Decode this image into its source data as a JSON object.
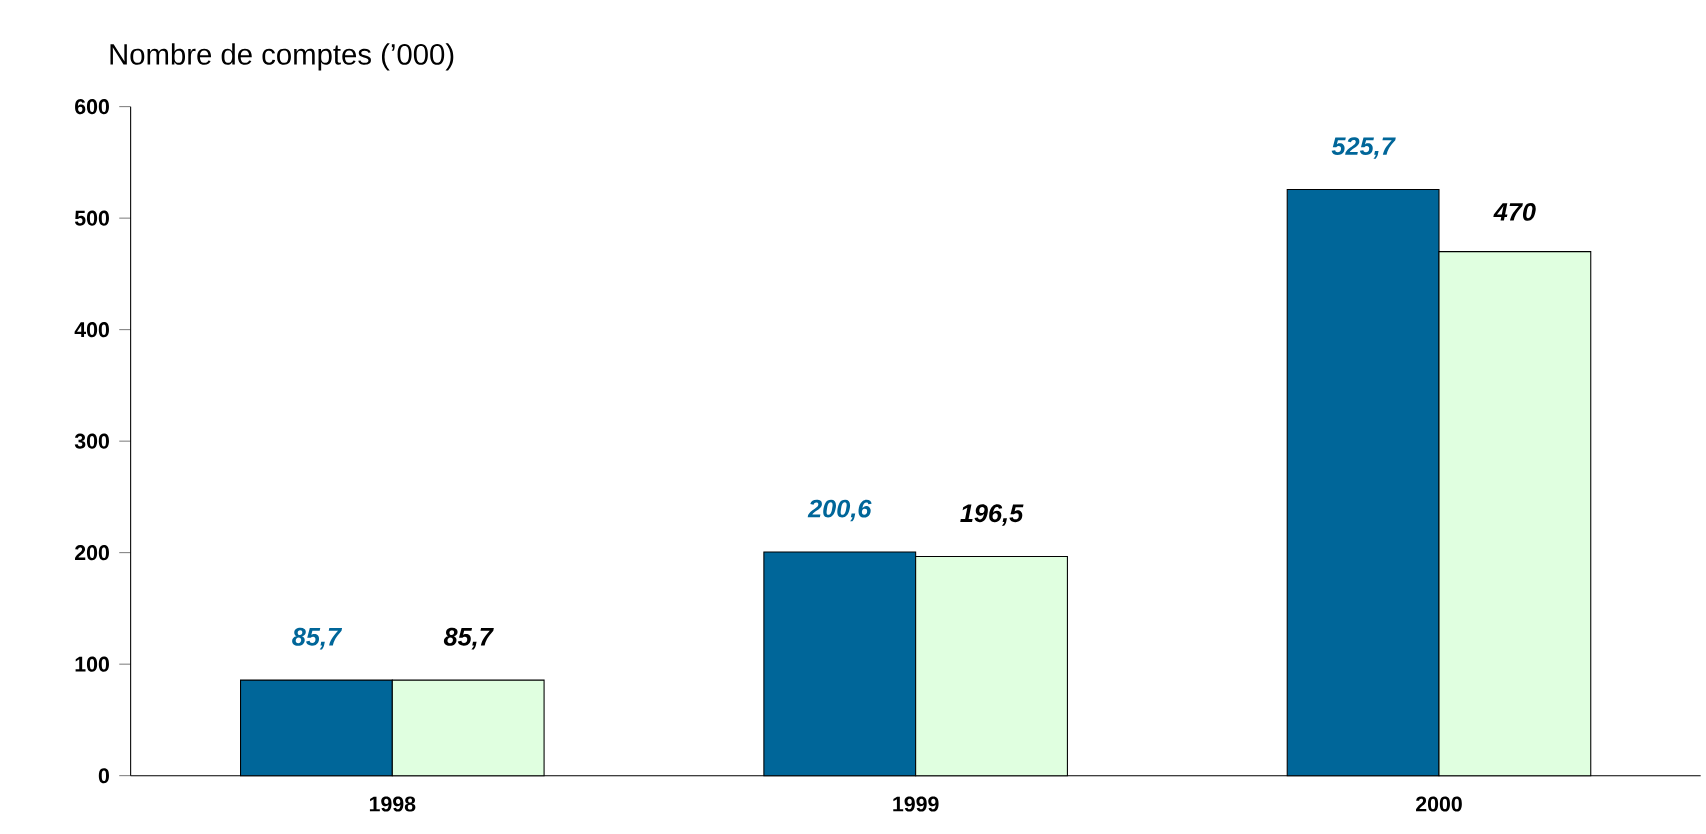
{
  "chart_data": {
    "type": "bar",
    "ylabel": "Nombre de comptes (’000)",
    "categories": [
      "1998",
      "1999",
      "2000"
    ],
    "series": [
      {
        "color": "#006699",
        "values": [
          85.7,
          200.6,
          525.7
        ],
        "value_labels": [
          "85,7",
          "200,6",
          "525,7"
        ]
      },
      {
        "color": "#e0ffe0",
        "values": [
          85.7,
          196.5,
          470
        ],
        "value_labels": [
          "85,7",
          "196,5",
          "470"
        ]
      }
    ],
    "ylim": [
      0,
      600
    ],
    "yticks": [
      0,
      100,
      200,
      300,
      400,
      500,
      600
    ],
    "grid": false
  }
}
